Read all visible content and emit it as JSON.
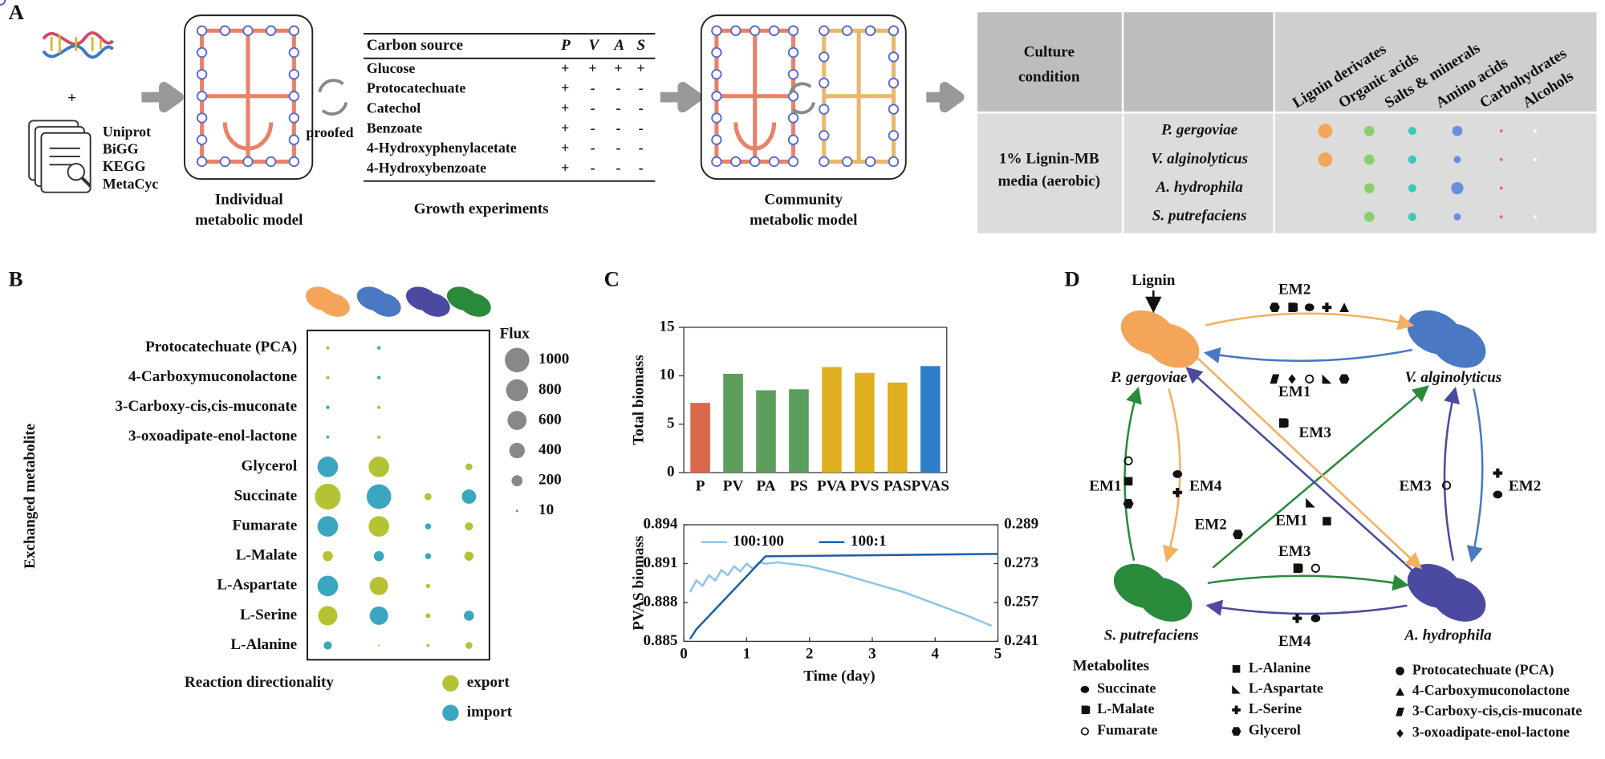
{
  "panel_labels": [
    "A",
    "B",
    "C",
    "D"
  ],
  "panel_a": {
    "databases": [
      "Uniprot",
      "BiGG",
      "KEGG",
      "MetaCyc"
    ],
    "plus": "+",
    "individual_model": [
      "Individual",
      "metabolic model"
    ],
    "proofed": "proofed",
    "growth_table": {
      "header": [
        "Carbon source",
        "P",
        "V",
        "A",
        "S"
      ],
      "rows": [
        [
          "Glucose",
          "+",
          "+",
          "+",
          "+"
        ],
        [
          "Protocatechuate",
          "+",
          "-",
          "-",
          "-"
        ],
        [
          "Catechol",
          "+",
          "-",
          "-",
          "-"
        ],
        [
          "Benzoate",
          "+",
          "-",
          "-",
          "-"
        ],
        [
          "4-Hydroxyphenylacetate",
          "+",
          "-",
          "-",
          "-"
        ],
        [
          "4-Hydroxybenzoate",
          "+",
          "-",
          "-",
          "-"
        ]
      ]
    },
    "growth_caption": "Growth experiments",
    "community_model": [
      "Community",
      "metabolic model"
    ],
    "culture_table": {
      "header": [
        "Culture",
        "condition"
      ],
      "columns": [
        "Lignin derivates",
        "Organic acids",
        "Salts & minerals",
        "Amino acids",
        "Carbohydrates",
        "Alcohols"
      ],
      "condition": [
        "1% Lignin-MB",
        "media (aerobic)"
      ],
      "species": [
        "P. gergoviae",
        "V. alginolyticus",
        "A. hydrophila",
        "S. putrefaciens"
      ]
    }
  },
  "chart_data": [
    {
      "type": "bubble",
      "y_label": "Exchanged metabolite",
      "categories": [
        "Protocatechuate (PCA)",
        "4-Carboxymuconolactone",
        "3-Carboxy-cis,cis-muconate",
        "3-oxoadipate-enol-lactone",
        "Glycerol",
        "Succinate",
        "Fumarate",
        "L-Malate",
        "L-Aspartate",
        "L-Serine",
        "L-Alanine"
      ],
      "series": [
        {
          "color": "#f5a55a",
          "values": [
            20,
            20,
            20,
            15,
            700,
            1100,
            700,
            170,
            700,
            620,
            110
          ],
          "directions": [
            "export",
            "export",
            "import",
            "import",
            "import",
            "export",
            "import",
            "export",
            "import",
            "export",
            "import"
          ]
        },
        {
          "color": "#4a78c2",
          "values": [
            20,
            20,
            20,
            20,
            700,
            1000,
            700,
            170,
            560,
            560,
            5
          ],
          "directions": [
            "import",
            "import",
            "export",
            "export",
            "export",
            "import",
            "export",
            "import",
            "export",
            "import",
            "export"
          ]
        },
        {
          "color": "#4b4aa0",
          "values": [
            null,
            null,
            null,
            null,
            null,
            80,
            60,
            60,
            30,
            40,
            15
          ],
          "directions": [
            null,
            null,
            null,
            null,
            null,
            "export",
            "import",
            "import",
            "export",
            "export",
            "export"
          ]
        },
        {
          "color": "#2a8a3c",
          "values": [
            null,
            null,
            null,
            null,
            80,
            340,
            110,
            140,
            null,
            170,
            80
          ],
          "directions": [
            null,
            null,
            null,
            null,
            "export",
            "import",
            "export",
            "export",
            null,
            "import",
            "export"
          ]
        }
      ],
      "size_legend": {
        "title": "Flux",
        "values": [
          1000,
          800,
          600,
          400,
          200,
          10
        ]
      },
      "color_legend": {
        "title": "Reaction directionality",
        "entries": [
          {
            "name": "export",
            "color": "#b5c234"
          },
          {
            "name": "import",
            "color": "#3aa6bf"
          }
        ]
      }
    },
    {
      "type": "bar",
      "y_label": "Total biomass",
      "categories": [
        "P",
        "PV",
        "PA",
        "PS",
        "PVA",
        "PVS",
        "PAS",
        "PVAS"
      ],
      "values": [
        7.2,
        10.2,
        8.5,
        8.6,
        10.9,
        10.3,
        9.3,
        11.0
      ],
      "colors": [
        "#d9694a",
        "#5d9e5e",
        "#5d9e5e",
        "#5d9e5e",
        "#e0b020",
        "#e0b020",
        "#e0b020",
        "#2f7fc8"
      ],
      "ylim": [
        0,
        15
      ],
      "yticks": [
        0,
        5,
        10,
        15
      ]
    },
    {
      "type": "line",
      "x_label": "Time (day)",
      "y_label": "PVAS biomass",
      "xlim": [
        0,
        5
      ],
      "xticks": [
        0,
        1,
        2,
        3,
        4,
        5
      ],
      "ylim": [
        0.885,
        0.894
      ],
      "yticks": [
        0.885,
        0.888,
        0.891,
        0.894
      ],
      "y2lim": [
        0.241,
        0.289
      ],
      "y2ticks": [
        0.241,
        0.257,
        0.273,
        0.289
      ],
      "series": [
        {
          "name": "100:100",
          "color": "#8cc4ea",
          "x": [
            0.1,
            0.2,
            0.3,
            0.4,
            0.5,
            0.6,
            0.7,
            0.8,
            0.9,
            1.0,
            1.1,
            1.2,
            1.3,
            1.5,
            2,
            2.5,
            3,
            3.5,
            4,
            4.5,
            4.9
          ],
          "values": [
            0.8888,
            0.8897,
            0.8893,
            0.8901,
            0.8897,
            0.8905,
            0.8901,
            0.8908,
            0.8904,
            0.891,
            0.8906,
            0.8911,
            0.891,
            0.8911,
            0.8908,
            0.8902,
            0.8895,
            0.8888,
            0.8879,
            0.887,
            0.8862
          ]
        },
        {
          "name": "100:1",
          "color": "#1f5fa8",
          "axis": "y2",
          "x": [
            0.1,
            0.2,
            1.3,
            5
          ],
          "values": [
            0.242,
            0.246,
            0.276,
            0.277
          ]
        }
      ]
    }
  ],
  "panel_d": {
    "input": "Lignin",
    "organisms": [
      "P. gergoviae",
      "V. alginolyticus",
      "S. putrefaciens",
      "A. hydrophila"
    ],
    "exchange_labels": [
      "EM2",
      "EM1",
      "EM3",
      "EM1",
      "EM4",
      "EM3",
      "EM2",
      "EM2",
      "EM1",
      "EM3",
      "EM4"
    ],
    "legend_title": "Metabolites",
    "legend": [
      "Succinate",
      "L-Malate",
      "Fumarate",
      "L-Alanine",
      "L-Aspartate",
      "L-Serine",
      "Glycerol",
      "Protocatechuate (PCA)",
      "4-Carboxymuconolactone",
      "3-Carboxy-cis,cis-muconate",
      "3-oxoadipate-enol-lactone"
    ]
  }
}
